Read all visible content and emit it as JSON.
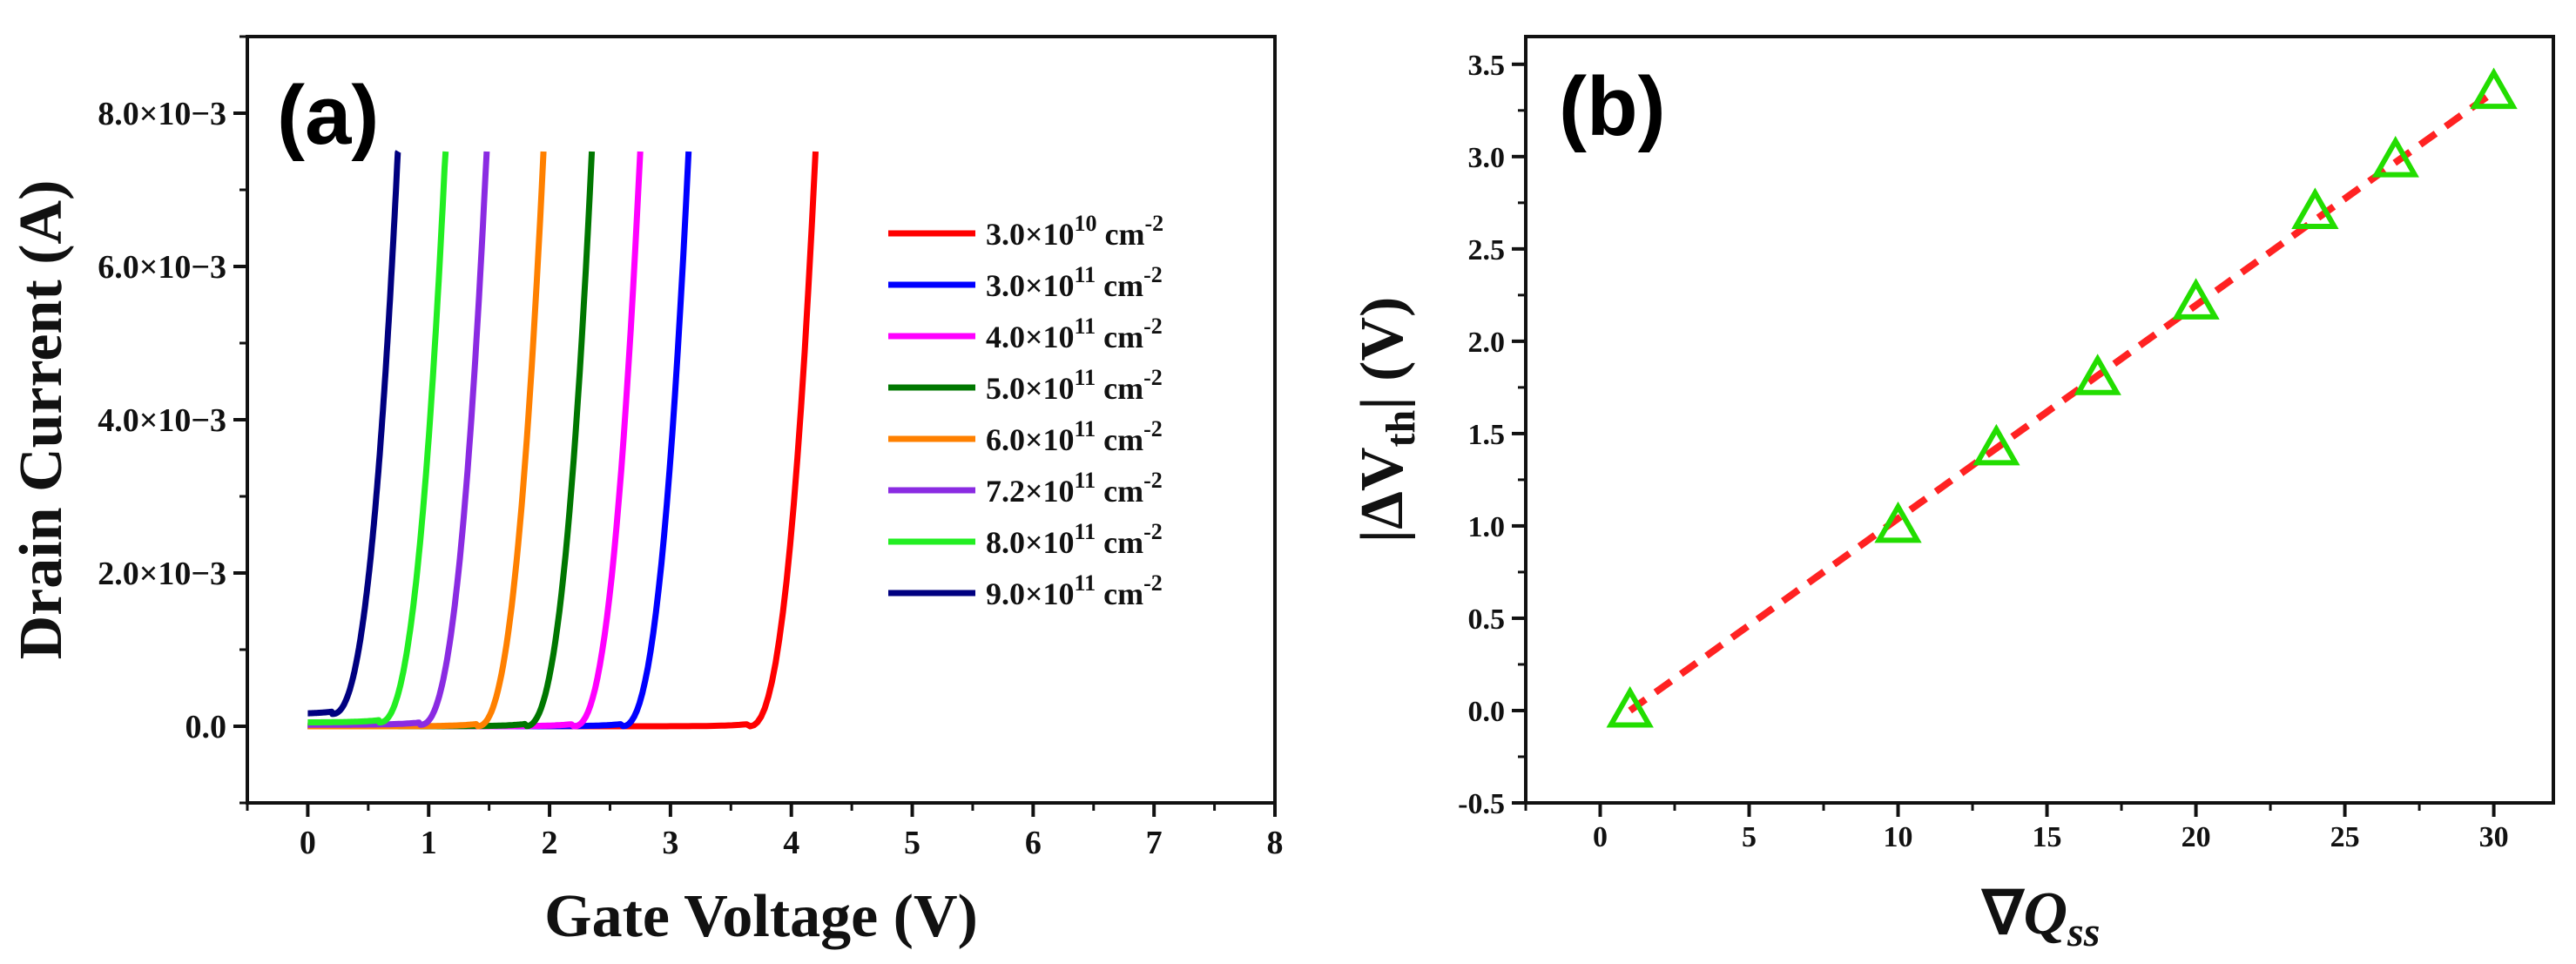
{
  "chart_data": [
    {
      "type": "line",
      "panel_label": "(a)",
      "xlabel": "Gate Voltage (V)",
      "ylabel": "Drain Current (A)",
      "xlim": [
        -0.5,
        8
      ],
      "ylim": [
        -0.001,
        0.009
      ],
      "xticks": [
        "0",
        "1",
        "2",
        "3",
        "4",
        "5",
        "6",
        "7",
        "8"
      ],
      "yticks": [
        "0.0",
        "2.0×10−3",
        "4.0×10−3",
        "6.0×10−3",
        "8.0×10−3"
      ],
      "ytick_values": [
        0,
        0.002,
        0.004,
        0.006,
        0.008
      ],
      "legend_position": "right",
      "series": [
        {
          "name": "3.0×10^10 cm^-2",
          "mantissa": "3.0×10",
          "exp": "10",
          "unit": " cm",
          "unit_exp": "-2",
          "color": "#ff0000",
          "end_v": 4.2,
          "start_i": 0.0
        },
        {
          "name": "3.0×10^11 cm^-2",
          "mantissa": "3.0×10",
          "exp": "11",
          "unit": " cm",
          "unit_exp": "-2",
          "color": "#0000ff",
          "end_v": 3.15,
          "start_i": 0.0
        },
        {
          "name": "4.0×10^11 cm^-2",
          "mantissa": "4.0×10",
          "exp": "11",
          "unit": " cm",
          "unit_exp": "-2",
          "color": "#ff00ff",
          "end_v": 2.75,
          "start_i": 0.0
        },
        {
          "name": "5.0×10^11 cm^-2",
          "mantissa": "5.0×10",
          "exp": "11",
          "unit": " cm",
          "unit_exp": "-2",
          "color": "#007700",
          "end_v": 2.35,
          "start_i": 0.0
        },
        {
          "name": "6.0×10^11 cm^-2",
          "mantissa": "6.0×10",
          "exp": "11",
          "unit": " cm",
          "unit_exp": "-2",
          "color": "#ff8000",
          "end_v": 1.95,
          "start_i": 0.0
        },
        {
          "name": "7.2×10^11 cm^-2",
          "mantissa": "7.2×10",
          "exp": "11",
          "unit": " cm",
          "unit_exp": "-2",
          "color": "#8a2be2",
          "end_v": 1.48,
          "start_i": 2e-05
        },
        {
          "name": "8.0×10^11 cm^-2",
          "mantissa": "8.0×10",
          "exp": "11",
          "unit": " cm",
          "unit_exp": "-2",
          "color": "#22ee22",
          "end_v": 1.14,
          "start_i": 5e-05
        },
        {
          "name": "9.0×10^11 cm^-2",
          "mantissa": "9.0×10",
          "exp": "11",
          "unit": " cm",
          "unit_exp": "-2",
          "color": "#000080",
          "end_v": 0.75,
          "start_i": 0.00016
        }
      ],
      "curve_top_current": 0.0075
    },
    {
      "type": "scatter",
      "panel_label": "(b)",
      "xlabel_symbol": "∇",
      "xlabel_var": "Q",
      "xlabel_sub": "ss",
      "ylabel_main": "|ΔV",
      "ylabel_sub": "th",
      "ylabel_tail": "| (V)",
      "xlim": [
        -2.5,
        32
      ],
      "ylim": [
        -0.5,
        3.65
      ],
      "xticks": [
        "0",
        "5",
        "10",
        "15",
        "20",
        "25",
        "30"
      ],
      "xtick_values": [
        0,
        5,
        10,
        15,
        20,
        25,
        30
      ],
      "yticks": [
        "-0.5",
        "0.0",
        "0.5",
        "1.0",
        "1.5",
        "2.0",
        "2.5",
        "3.0",
        "3.5"
      ],
      "ytick_values": [
        -0.5,
        0,
        0.5,
        1.0,
        1.5,
        2.0,
        2.5,
        3.0,
        3.5
      ],
      "x": [
        1,
        10,
        13.3,
        16.7,
        20,
        24,
        26.7,
        30
      ],
      "y": [
        0.0,
        1.0,
        1.42,
        1.8,
        2.21,
        2.7,
        2.98,
        3.35
      ],
      "marker_color": "#22dd00",
      "fit_color": "#ff2222"
    }
  ]
}
